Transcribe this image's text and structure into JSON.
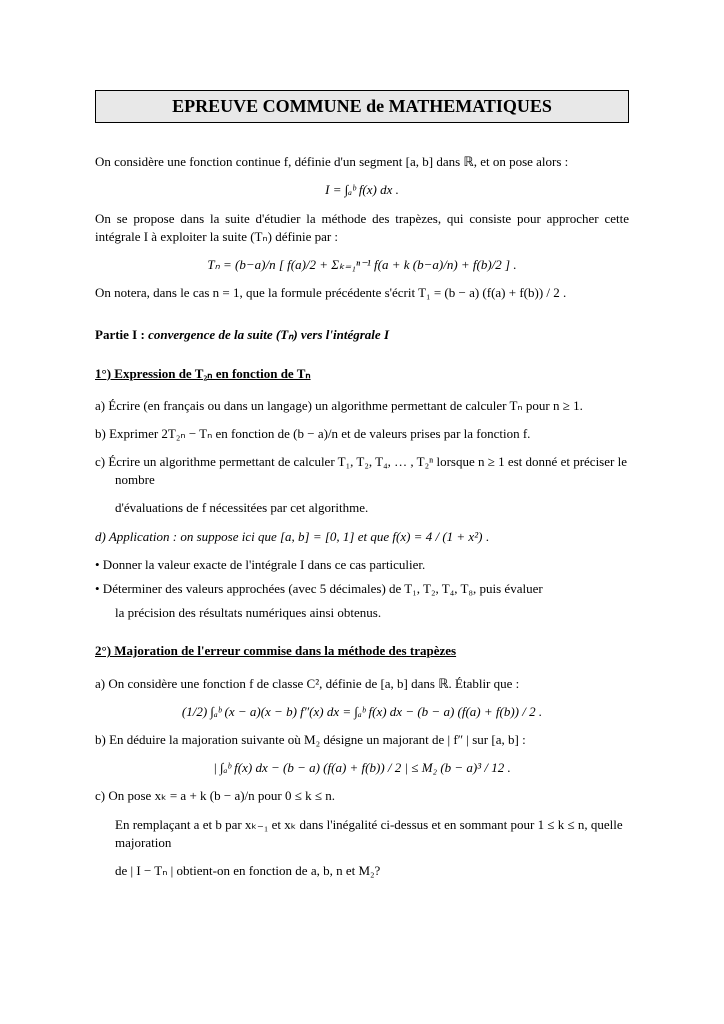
{
  "title": "EPREUVE COMMUNE de MATHEMATIQUES",
  "intro_line": "On considère une fonction continue f, définie d'un segment [a, b] dans ℝ, et on pose alors :",
  "formula_I": "I = ∫ₐᵇ f(x) dx .",
  "intro2": "On se propose dans la suite d'étudier la méthode des trapèzes, qui consiste pour approcher cette intégrale I à exploiter la suite (Tₙ) définie par :",
  "formula_Tn": "Tₙ = (b−a)/n [ f(a)/2 + Σₖ₌₁ⁿ⁻¹ f(a + k (b−a)/n) + f(b)/2 ] .",
  "note_T1": "On notera, dans le cas n = 1, que la formule précédente s'écrit T₁ = (b − a) (f(a) + f(b)) / 2 .",
  "partI_title_prefix": "Partie I :  ",
  "partI_title_it": "convergence de la suite (Tₙ) vers l'intégrale I",
  "q1_title": "1°) Expression de T₂ₙ en fonction de Tₙ",
  "q1a": "a)   Écrire (en français ou dans un langage) un algorithme permettant de calculer Tₙ pour n ≥ 1.",
  "q1b": "b)   Exprimer 2T₂ₙ − Tₙ en fonction de (b − a)/n et de valeurs prises par la fonction f.",
  "q1c_line1": "c)   Écrire un algorithme permettant de calculer T₁, T₂, T₄, … , T₂ⁿ  lorsque n ≥ 1 est donné et préciser le nombre",
  "q1c_line2": "d'évaluations de f nécessitées par cet algorithme.",
  "q1d_it": "d)   Application : on suppose ici que [a, b] = [0, 1] et que f(x) = ",
  "q1d_frac": "4 / (1 + x²)",
  "q1d_dot": " .",
  "bullet1": "•    Donner la valeur exacte de l'intégrale I dans ce cas particulier.",
  "bullet2": "•    Déterminer des valeurs approchées (avec 5 décimales) de T₁, T₂, T₄, T₈, puis évaluer",
  "bullet2b": "la précision des résultats numériques ainsi obtenus.",
  "q2_title": "2°) Majoration de l'erreur commise dans la méthode des trapèzes",
  "q2a": "a)   On considère une fonction f de classe C², définie de [a, b] dans ℝ. Établir que :",
  "q2a_formula": "(1/2) ∫ₐᵇ (x − a)(x − b) f″(x) dx  =  ∫ₐᵇ f(x) dx − (b − a) (f(a) + f(b)) / 2 .",
  "q2b": "b)   En déduire la majoration suivante où M₂ désigne un majorant de | f″ | sur [a, b] :",
  "q2b_formula": "| ∫ₐᵇ f(x) dx − (b − a) (f(a) + f(b)) / 2 |  ≤  M₂ (b − a)³ / 12 .",
  "q2c_pre": "c)   On pose xₖ = a + k (b − a)/n  pour 0 ≤ k ≤ n.",
  "q2c_line2": "En remplaçant a et b par xₖ₋₁ et xₖ dans l'inégalité ci-dessus et en sommant pour 1 ≤ k ≤ n, quelle majoration",
  "q2c_line3": "de | I − Tₙ |  obtient-on en fonction de a, b, n et M₂?",
  "colors": {
    "background": "#ffffff",
    "title_bg": "#e8e8e8",
    "border": "#000000",
    "text": "#000000"
  },
  "fontsizes": {
    "body_pt": 10,
    "title_pt": 14
  }
}
